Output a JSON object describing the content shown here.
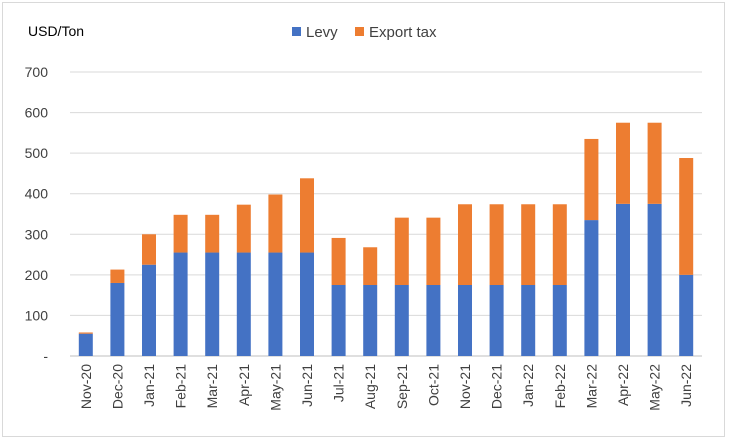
{
  "chart_data": {
    "type": "bar",
    "stacked": true,
    "ylabel": "USD/Ton",
    "ylim": [
      0,
      700
    ],
    "yticks": [
      0,
      100,
      200,
      300,
      400,
      500,
      600,
      700
    ],
    "ytick_labels": [
      "-",
      "100",
      "200",
      "300",
      "400",
      "500",
      "600",
      "700"
    ],
    "grid": true,
    "legend_position": "top-center",
    "categories": [
      "Nov-20",
      "Dec-20",
      "Jan-21",
      "Feb-21",
      "Mar-21",
      "Apr-21",
      "May-21",
      "Jun-21",
      "Jul-21",
      "Aug-21",
      "Sep-21",
      "Oct-21",
      "Nov-21",
      "Dec-21",
      "Jan-22",
      "Feb-22",
      "Mar-22",
      "Apr-22",
      "May-22",
      "Jun-22"
    ],
    "series": [
      {
        "name": "Levy",
        "color": "#4472C4",
        "values": [
          55,
          180,
          225,
          255,
          255,
          255,
          255,
          255,
          175,
          175,
          175,
          175,
          175,
          175,
          175,
          175,
          335,
          375,
          375,
          200
        ]
      },
      {
        "name": "Export tax",
        "color": "#ED7D31",
        "values": [
          3,
          33,
          75,
          93,
          93,
          118,
          143,
          183,
          116,
          93,
          166,
          166,
          199,
          199,
          199,
          199,
          200,
          200,
          200,
          288
        ]
      }
    ]
  }
}
